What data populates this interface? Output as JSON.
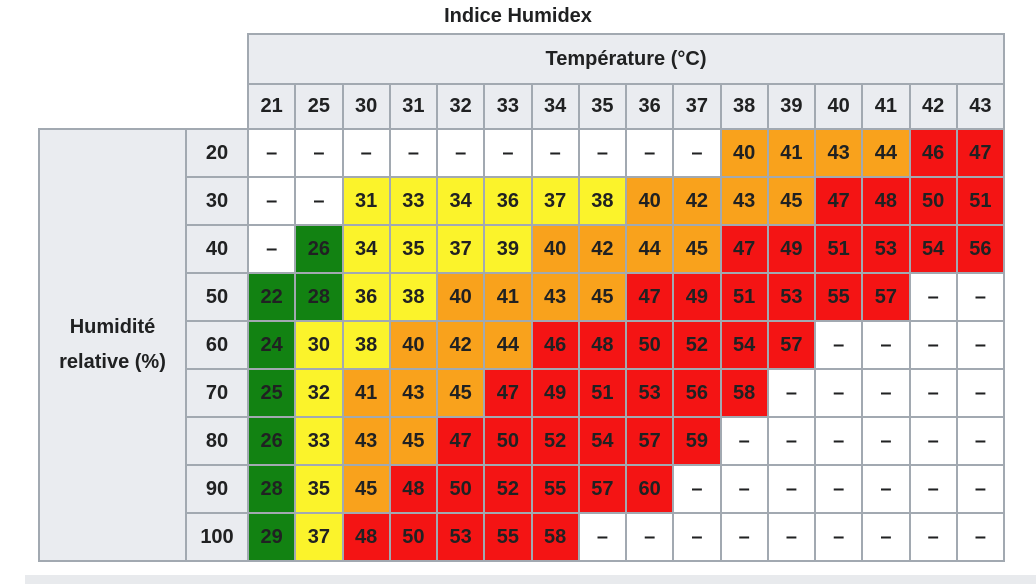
{
  "title": "Indice Humidex",
  "colors": {
    "white": "#FFFFFF",
    "green": "#128212",
    "yellow": "#FBF32B",
    "orange": "#F9A21C",
    "red": "#F41414",
    "header_bg": "#EAECF0",
    "border": "#A2A9B1",
    "text": "#202122",
    "divider": "#E8EAED"
  },
  "chart_data": {
    "type": "heatmap",
    "title": "Indice Humidex",
    "x_label": "Température (°C)",
    "y_label": "Humidité relative (%)",
    "x": [
      21,
      25,
      30,
      31,
      32,
      33,
      34,
      35,
      36,
      37,
      38,
      39,
      40,
      41,
      42,
      43
    ],
    "y": [
      20,
      30,
      40,
      50,
      60,
      70,
      80,
      90,
      100
    ],
    "missing_value_display": "–",
    "values": [
      [
        null,
        null,
        null,
        null,
        null,
        null,
        null,
        null,
        null,
        null,
        40,
        41,
        43,
        44,
        46,
        47
      ],
      [
        null,
        null,
        31,
        33,
        34,
        36,
        37,
        38,
        40,
        42,
        43,
        45,
        47,
        48,
        50,
        51
      ],
      [
        null,
        26,
        34,
        35,
        37,
        39,
        40,
        42,
        44,
        45,
        47,
        49,
        51,
        53,
        54,
        56
      ],
      [
        22,
        28,
        36,
        38,
        40,
        41,
        43,
        45,
        47,
        49,
        51,
        53,
        55,
        57,
        null,
        null
      ],
      [
        24,
        30,
        38,
        40,
        42,
        44,
        46,
        48,
        50,
        52,
        54,
        57,
        null,
        null,
        null,
        null
      ],
      [
        25,
        32,
        41,
        43,
        45,
        47,
        49,
        51,
        53,
        56,
        58,
        null,
        null,
        null,
        null,
        null
      ],
      [
        26,
        33,
        43,
        45,
        47,
        50,
        52,
        54,
        57,
        59,
        null,
        null,
        null,
        null,
        null,
        null
      ],
      [
        28,
        35,
        45,
        48,
        50,
        52,
        55,
        57,
        60,
        null,
        null,
        null,
        null,
        null,
        null,
        null
      ],
      [
        29,
        37,
        48,
        50,
        53,
        55,
        58,
        null,
        null,
        null,
        null,
        null,
        null,
        null,
        null,
        null
      ]
    ],
    "cell_colors": [
      [
        "white",
        "white",
        "white",
        "white",
        "white",
        "white",
        "white",
        "white",
        "white",
        "white",
        "orange",
        "orange",
        "orange",
        "orange",
        "red",
        "red"
      ],
      [
        "white",
        "white",
        "yellow",
        "yellow",
        "yellow",
        "yellow",
        "yellow",
        "yellow",
        "orange",
        "orange",
        "orange",
        "orange",
        "red",
        "red",
        "red",
        "red"
      ],
      [
        "white",
        "green",
        "yellow",
        "yellow",
        "yellow",
        "yellow",
        "orange",
        "orange",
        "orange",
        "orange",
        "red",
        "red",
        "red",
        "red",
        "red",
        "red"
      ],
      [
        "green",
        "green",
        "yellow",
        "yellow",
        "orange",
        "orange",
        "orange",
        "orange",
        "red",
        "red",
        "red",
        "red",
        "red",
        "red",
        "white",
        "white"
      ],
      [
        "green",
        "yellow",
        "yellow",
        "orange",
        "orange",
        "orange",
        "red",
        "red",
        "red",
        "red",
        "red",
        "red",
        "white",
        "white",
        "white",
        "white"
      ],
      [
        "green",
        "yellow",
        "orange",
        "orange",
        "orange",
        "red",
        "red",
        "red",
        "red",
        "red",
        "red",
        "white",
        "white",
        "white",
        "white",
        "white"
      ],
      [
        "green",
        "yellow",
        "orange",
        "orange",
        "red",
        "red",
        "red",
        "red",
        "red",
        "red",
        "white",
        "white",
        "white",
        "white",
        "white",
        "white"
      ],
      [
        "green",
        "yellow",
        "orange",
        "red",
        "red",
        "red",
        "red",
        "red",
        "red",
        "white",
        "white",
        "white",
        "white",
        "white",
        "white",
        "white"
      ],
      [
        "green",
        "yellow",
        "red",
        "red",
        "red",
        "red",
        "red",
        "white",
        "white",
        "white",
        "white",
        "white",
        "white",
        "white",
        "white",
        "white"
      ]
    ]
  }
}
